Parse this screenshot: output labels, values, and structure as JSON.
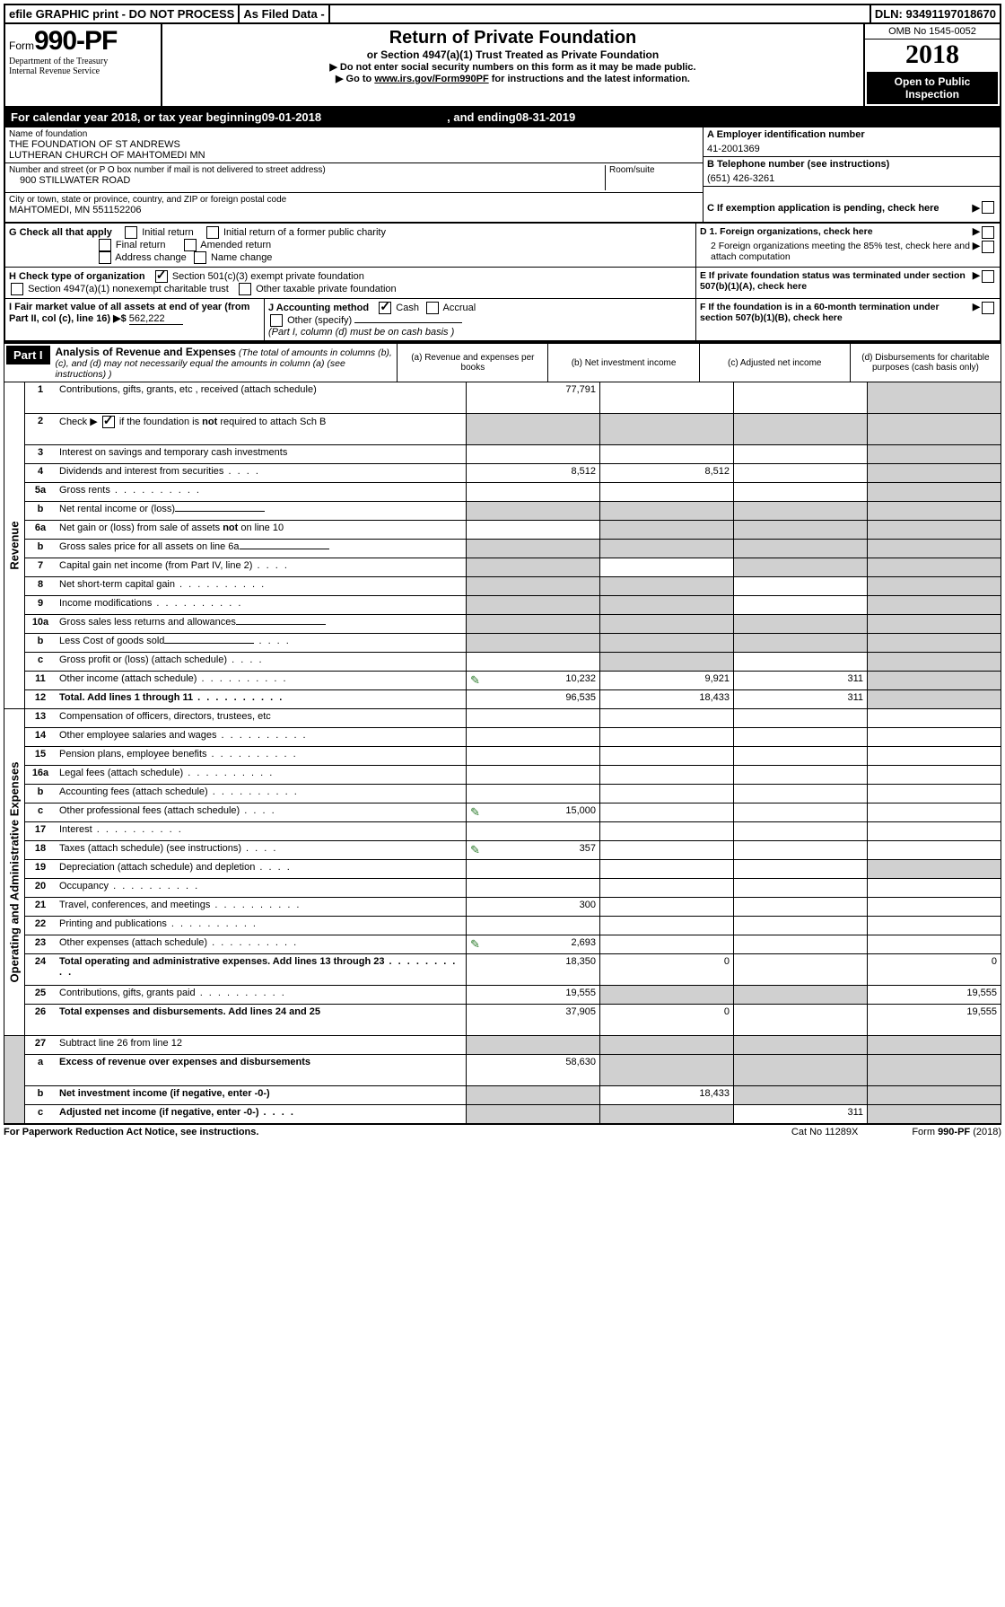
{
  "top": {
    "efile": "efile GRAPHIC print - DO NOT PROCESS",
    "asfiled": "As Filed Data -",
    "dln": "DLN: 93491197018670"
  },
  "header": {
    "form_prefix": "Form",
    "form_number": "990-PF",
    "dept": "Department of the Treasury",
    "irs": "Internal Revenue Service",
    "title": "Return of Private Foundation",
    "subtitle": "or Section 4947(a)(1) Trust Treated as Private Foundation",
    "instr1": "▶ Do not enter social security numbers on this form as it may be made public.",
    "instr2_pre": "▶ Go to ",
    "instr2_link": "www.irs.gov/Form990PF",
    "instr2_post": " for instructions and the latest information.",
    "omb": "OMB No 1545-0052",
    "year": "2018",
    "open": "Open to Public Inspection"
  },
  "calyear": {
    "prefix": "For calendar year 2018, or tax year beginning ",
    "begin": "09-01-2018",
    "mid": ", and ending ",
    "end": "08-31-2019"
  },
  "entity": {
    "name_label": "Name of foundation",
    "name1": "THE FOUNDATION OF ST ANDREWS",
    "name2": "LUTHERAN CHURCH OF MAHTOMEDI MN",
    "addr_label": "Number and street (or P O  box number if mail is not delivered to street address)",
    "room_label": "Room/suite",
    "addr": "900 STILLWATER ROAD",
    "city_label": "City or town, state or province, country, and ZIP or foreign postal code",
    "city": "MAHTOMEDI, MN  551152206",
    "ein_label": "A Employer identification number",
    "ein": "41-2001369",
    "phone_label": "B Telephone number (see instructions)",
    "phone": "(651) 426-3261",
    "c_label": "C If exemption application is pending, check here"
  },
  "G": {
    "label": "G Check all that apply",
    "opts": [
      "Initial return",
      "Initial return of a former public charity",
      "Final return",
      "Amended return",
      "Address change",
      "Name change"
    ]
  },
  "H": {
    "label": "H Check type of organization",
    "opt1": "Section 501(c)(3) exempt private foundation",
    "opt2": "Section 4947(a)(1) nonexempt charitable trust",
    "opt3": "Other taxable private foundation"
  },
  "D": {
    "d1": "D 1. Foreign organizations, check here",
    "d2": "2 Foreign organizations meeting the 85% test, check here and attach computation"
  },
  "E": "E  If private foundation status was terminated under section 507(b)(1)(A), check here",
  "I": {
    "label": "I Fair market value of all assets at end of year (from Part II, col  (c), line 16) ▶$",
    "value": "562,222"
  },
  "J": {
    "label": "J Accounting method",
    "cash": "Cash",
    "accrual": "Accrual",
    "other": "Other (specify)",
    "note": "(Part I, column (d) must be on cash basis )"
  },
  "F": "F  If the foundation is in a 60-month termination under section 507(b)(1)(B), check here",
  "part1": {
    "label": "Part I",
    "title": "Analysis of Revenue and Expenses",
    "note": "(The total of amounts in columns (b), (c), and (d) may not necessarily equal the amounts in column (a) (see instructions) )",
    "col_a": "(a)   Revenue and expenses per books",
    "col_b": "(b)  Net investment income",
    "col_c": "(c)  Adjusted net income",
    "col_d": "(d)  Disbursements for charitable purposes (cash basis only)"
  },
  "sections": {
    "revenue": "Revenue",
    "expenses": "Operating and Administrative Expenses"
  },
  "rows": [
    {
      "n": "1",
      "label": "Contributions, gifts, grants, etc , received (attach schedule)",
      "a": "77,791",
      "tall": true,
      "shade_d": true
    },
    {
      "n": "2",
      "label": "Check ▶ ☑ if the foundation is not required to attach Sch B",
      "novals": true,
      "tall": true,
      "shade_all": true
    },
    {
      "n": "3",
      "label": "Interest on savings and temporary cash investments",
      "shade_d": true
    },
    {
      "n": "4",
      "label": "Dividends and interest from securities",
      "a": "8,512",
      "b": "8,512",
      "dots": "short",
      "shade_d": true
    },
    {
      "n": "5a",
      "label": "Gross rents",
      "dots": "long",
      "shade_d": true
    },
    {
      "n": "b",
      "label": "Net rental income or (loss)",
      "shade_all": true,
      "underline": true
    },
    {
      "n": "6a",
      "label": "Net gain or (loss) from sale of assets not on line 10",
      "shade_bcd": true
    },
    {
      "n": "b",
      "label": "Gross sales price for all assets on line 6a",
      "shade_all": true,
      "underline": true
    },
    {
      "n": "7",
      "label": "Capital gain net income (from Part IV, line 2)",
      "dots": "short",
      "shade_a": true,
      "shade_cd": true
    },
    {
      "n": "8",
      "label": "Net short-term capital gain",
      "dots": "long",
      "shade_ab": true,
      "shade_d": true
    },
    {
      "n": "9",
      "label": "Income modifications",
      "dots": "long",
      "shade_ab": true,
      "shade_d": true
    },
    {
      "n": "10a",
      "label": "Gross sales less returns and allowances",
      "shade_all": true,
      "underline": true
    },
    {
      "n": "b",
      "label": "Less  Cost of goods sold",
      "dots": "short",
      "shade_all": true,
      "underline": true
    },
    {
      "n": "c",
      "label": "Gross profit or (loss) (attach schedule)",
      "dots": "short",
      "shade_b": true,
      "shade_d": true
    },
    {
      "n": "11",
      "label": "Other income (attach schedule)",
      "dots": "long",
      "a": "10,232",
      "b": "9,921",
      "c": "311",
      "attach": true,
      "shade_d": true
    },
    {
      "n": "12",
      "label": "Total. Add lines 1 through 11",
      "bold": true,
      "dots": "long",
      "a": "96,535",
      "b": "18,433",
      "c": "311",
      "shade_d": true
    }
  ],
  "exp_rows": [
    {
      "n": "13",
      "label": "Compensation of officers, directors, trustees, etc"
    },
    {
      "n": "14",
      "label": "Other employee salaries and wages",
      "dots": "long"
    },
    {
      "n": "15",
      "label": "Pension plans, employee benefits",
      "dots": "long"
    },
    {
      "n": "16a",
      "label": "Legal fees (attach schedule)",
      "dots": "long"
    },
    {
      "n": "b",
      "label": "Accounting fees (attach schedule)",
      "dots": "long"
    },
    {
      "n": "c",
      "label": "Other professional fees (attach schedule)",
      "dots": "short",
      "a": "15,000",
      "attach": true
    },
    {
      "n": "17",
      "label": "Interest",
      "dots": "long"
    },
    {
      "n": "18",
      "label": "Taxes (attach schedule) (see instructions)",
      "dots": "short",
      "a": "357",
      "attach": true
    },
    {
      "n": "19",
      "label": "Depreciation (attach schedule) and depletion",
      "dots": "short",
      "shade_d": true
    },
    {
      "n": "20",
      "label": "Occupancy",
      "dots": "long"
    },
    {
      "n": "21",
      "label": "Travel, conferences, and meetings",
      "dots": "long",
      "a": "300"
    },
    {
      "n": "22",
      "label": "Printing and publications",
      "dots": "long"
    },
    {
      "n": "23",
      "label": "Other expenses (attach schedule)",
      "dots": "long",
      "a": "2,693",
      "attach": true
    },
    {
      "n": "24",
      "label": "Total operating and administrative expenses. Add lines 13 through 23",
      "bold": true,
      "dots": "long",
      "a": "18,350",
      "b": "0",
      "d": "0",
      "tall": true
    },
    {
      "n": "25",
      "label": "Contributions, gifts, grants paid",
      "dots": "long",
      "a": "19,555",
      "d": "19,555",
      "shade_bc": true
    },
    {
      "n": "26",
      "label": "Total expenses and disbursements. Add lines 24 and 25",
      "bold": true,
      "a": "37,905",
      "b": "0",
      "d": "19,555",
      "tall": true
    }
  ],
  "net_rows": [
    {
      "n": "27",
      "label": "Subtract line 26 from line 12",
      "shade_all": true
    },
    {
      "n": "a",
      "label": "Excess of revenue over expenses and disbursements",
      "bold": true,
      "a": "58,630",
      "shade_bcd": true,
      "tall": true
    },
    {
      "n": "b",
      "label": "Net investment income (if negative, enter -0-)",
      "bold": true,
      "b": "18,433",
      "shade_a": true,
      "shade_cd": true
    },
    {
      "n": "c",
      "label": "Adjusted net income (if negative, enter -0-)",
      "bold": true,
      "dots": "short",
      "c": "311",
      "shade_ab": true,
      "shade_d": true
    }
  ],
  "footer": {
    "left": "For Paperwork Reduction Act Notice, see instructions.",
    "mid": "Cat  No  11289X",
    "right_pre": "Form ",
    "right_bold": "990-PF",
    "right_post": " (2018)"
  }
}
